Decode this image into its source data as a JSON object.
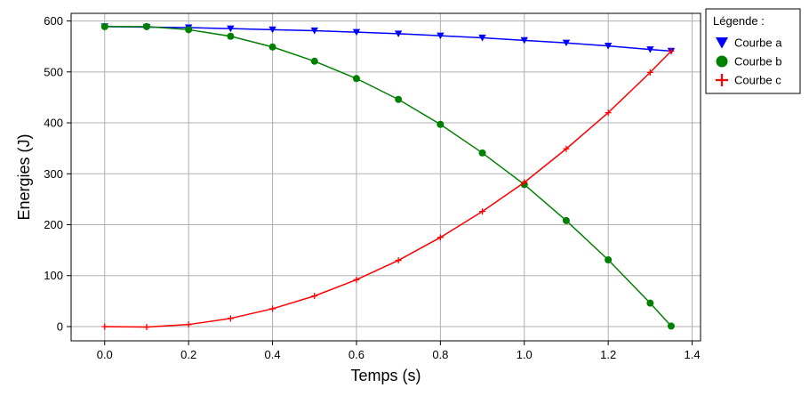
{
  "chart_data": {
    "type": "line",
    "xlabel": "Temps (s)",
    "ylabel": "Energies (J)",
    "xlim": [
      -0.08,
      1.42
    ],
    "ylim": [
      -28,
      615
    ],
    "xticks": [
      0.0,
      0.2,
      0.4,
      0.6,
      0.8,
      1.0,
      1.2,
      1.4
    ],
    "xtick_labels": [
      "0.0",
      "0.2",
      "0.4",
      "0.6",
      "0.8",
      "1.0",
      "1.2",
      "1.4"
    ],
    "yticks": [
      0,
      100,
      200,
      300,
      400,
      500,
      600
    ],
    "ytick_labels": [
      "0",
      "100",
      "200",
      "300",
      "400",
      "500",
      "600"
    ],
    "grid": true,
    "legend_title": "Légende :",
    "legend_position": "outside-top-right",
    "series": [
      {
        "name": "Courbe a",
        "color": "#0000ff",
        "marker": "triangle-down",
        "x": [
          0.0,
          0.1,
          0.2,
          0.3,
          0.4,
          0.5,
          0.6,
          0.7,
          0.8,
          0.9,
          1.0,
          1.1,
          1.2,
          1.3,
          1.35
        ],
        "y": [
          589,
          588,
          587,
          585,
          583,
          581,
          578,
          575,
          571,
          567,
          562,
          557,
          551,
          544,
          541
        ]
      },
      {
        "name": "Courbe b",
        "color": "#008000",
        "marker": "circle",
        "x": [
          0.0,
          0.1,
          0.2,
          0.3,
          0.4,
          0.5,
          0.6,
          0.7,
          0.8,
          0.9,
          1.0,
          1.1,
          1.2,
          1.3,
          1.35
        ],
        "y": [
          589,
          589,
          583,
          570,
          549,
          521,
          487,
          446,
          397,
          341,
          279,
          208,
          131,
          46,
          1
        ]
      },
      {
        "name": "Courbe c",
        "color": "#ff0000",
        "marker": "plus",
        "x": [
          0.0,
          0.1,
          0.2,
          0.3,
          0.4,
          0.5,
          0.6,
          0.7,
          0.8,
          0.9,
          1.0,
          1.1,
          1.2,
          1.3,
          1.35
        ],
        "y": [
          0,
          -1,
          4,
          16,
          35,
          60,
          92,
          130,
          175,
          226,
          283,
          349,
          420,
          499,
          541
        ]
      }
    ]
  }
}
